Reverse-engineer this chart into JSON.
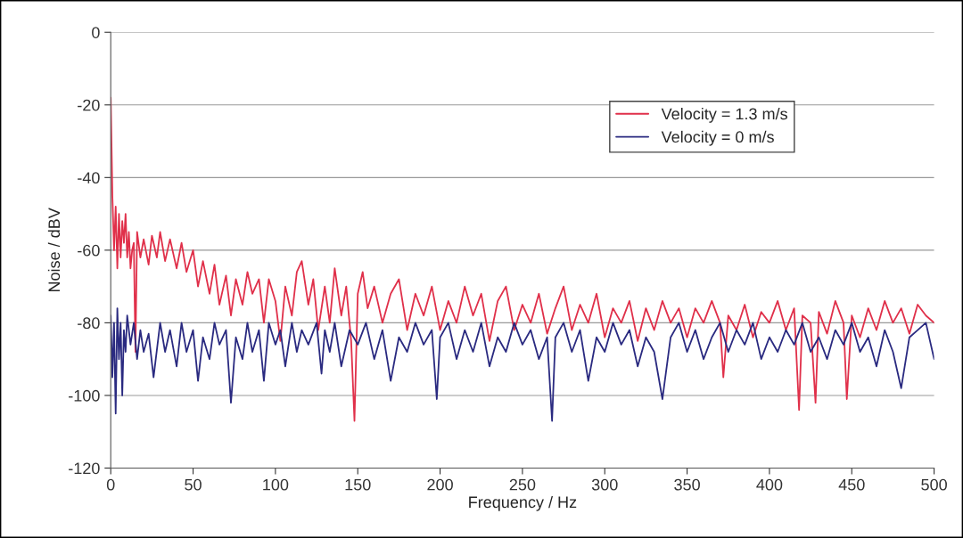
{
  "chart_data": {
    "type": "line",
    "xlabel": "Frequency / Hz",
    "ylabel": "Noise / dBV",
    "xlim": [
      0,
      500
    ],
    "xticks": [
      0,
      50,
      100,
      150,
      200,
      250,
      300,
      350,
      400,
      450,
      500
    ],
    "ylim": [
      -120,
      0
    ],
    "yticks": [
      -120,
      -100,
      -80,
      -60,
      -40,
      -20,
      0
    ],
    "grid": "y",
    "legend": "top right",
    "line_style": "solid",
    "marker": "none",
    "series": [
      {
        "name": "Velocity = 1.3 m/s",
        "color": "#e0304a",
        "x": [
          0,
          1,
          2,
          3,
          4,
          5,
          6,
          7,
          8,
          9,
          10,
          11,
          12,
          13,
          14,
          15,
          16,
          18,
          20,
          23,
          25,
          28,
          30,
          33,
          36,
          40,
          43,
          46,
          50,
          53,
          56,
          60,
          63,
          66,
          70,
          73,
          76,
          80,
          83,
          86,
          90,
          93,
          96,
          100,
          103,
          106,
          110,
          113,
          116,
          120,
          123,
          126,
          130,
          133,
          136,
          140,
          143,
          146,
          148,
          150,
          153,
          156,
          160,
          165,
          170,
          175,
          180,
          185,
          190,
          195,
          200,
          205,
          210,
          215,
          220,
          225,
          230,
          235,
          240,
          245,
          250,
          255,
          260,
          265,
          270,
          275,
          280,
          285,
          290,
          295,
          300,
          305,
          310,
          315,
          320,
          325,
          330,
          335,
          340,
          345,
          350,
          355,
          360,
          365,
          370,
          372,
          375,
          380,
          385,
          390,
          395,
          400,
          405,
          410,
          415,
          418,
          420,
          425,
          428,
          430,
          435,
          440,
          445,
          447,
          450,
          455,
          460,
          465,
          470,
          475,
          480,
          485,
          490,
          495,
          500
        ],
        "values": [
          -18,
          -45,
          -60,
          -48,
          -65,
          -50,
          -62,
          -52,
          -58,
          -50,
          -62,
          -55,
          -65,
          -60,
          -58,
          -88,
          -55,
          -62,
          -57,
          -64,
          -56,
          -62,
          -55,
          -63,
          -57,
          -65,
          -58,
          -66,
          -60,
          -70,
          -63,
          -72,
          -64,
          -75,
          -67,
          -78,
          -68,
          -75,
          -66,
          -72,
          -68,
          -80,
          -68,
          -74,
          -85,
          -70,
          -78,
          -66,
          -63,
          -75,
          -68,
          -82,
          -70,
          -80,
          -65,
          -78,
          -70,
          -85,
          -107,
          -72,
          -66,
          -76,
          -70,
          -80,
          -72,
          -68,
          -82,
          -72,
          -78,
          -70,
          -82,
          -74,
          -80,
          -70,
          -78,
          -72,
          -85,
          -74,
          -70,
          -82,
          -75,
          -80,
          -72,
          -83,
          -76,
          -70,
          -82,
          -75,
          -80,
          -72,
          -84,
          -76,
          -80,
          -74,
          -85,
          -76,
          -82,
          -74,
          -80,
          -76,
          -84,
          -76,
          -80,
          -74,
          -80,
          -95,
          -78,
          -82,
          -75,
          -84,
          -77,
          -80,
          -74,
          -82,
          -76,
          -104,
          -78,
          -80,
          -102,
          -77,
          -83,
          -74,
          -80,
          -101,
          -78,
          -84,
          -76,
          -82,
          -74,
          -80,
          -76,
          -83,
          -75,
          -78,
          -80
        ]
      },
      {
        "name": "Velocity = 0 m/s",
        "color": "#2a2a80",
        "x": [
          0,
          1,
          2,
          3,
          4,
          5,
          6,
          7,
          8,
          9,
          10,
          12,
          14,
          16,
          18,
          20,
          23,
          26,
          30,
          33,
          36,
          40,
          43,
          46,
          50,
          53,
          56,
          60,
          63,
          66,
          70,
          73,
          76,
          80,
          83,
          86,
          90,
          93,
          96,
          100,
          103,
          106,
          110,
          113,
          116,
          120,
          125,
          128,
          130,
          133,
          136,
          140,
          145,
          150,
          155,
          160,
          165,
          170,
          175,
          180,
          185,
          190,
          195,
          198,
          200,
          205,
          210,
          215,
          220,
          225,
          230,
          235,
          240,
          245,
          250,
          255,
          260,
          265,
          268,
          270,
          275,
          280,
          285,
          290,
          295,
          300,
          305,
          310,
          315,
          320,
          325,
          330,
          335,
          340,
          345,
          350,
          355,
          360,
          365,
          370,
          375,
          380,
          385,
          390,
          395,
          400,
          405,
          410,
          415,
          420,
          425,
          430,
          435,
          440,
          445,
          450,
          455,
          460,
          465,
          470,
          475,
          480,
          485,
          490,
          495,
          500
        ],
        "values": [
          -78,
          -95,
          -80,
          -105,
          -76,
          -90,
          -80,
          -100,
          -82,
          -88,
          -78,
          -86,
          -80,
          -90,
          -82,
          -88,
          -83,
          -95,
          -80,
          -88,
          -82,
          -92,
          -80,
          -88,
          -82,
          -96,
          -84,
          -90,
          -80,
          -86,
          -82,
          -102,
          -84,
          -90,
          -80,
          -88,
          -82,
          -96,
          -80,
          -86,
          -82,
          -92,
          -80,
          -88,
          -82,
          -86,
          -80,
          -94,
          -82,
          -88,
          -80,
          -92,
          -82,
          -86,
          -80,
          -90,
          -82,
          -96,
          -84,
          -88,
          -80,
          -86,
          -82,
          -101,
          -84,
          -80,
          -90,
          -82,
          -88,
          -80,
          -92,
          -84,
          -88,
          -80,
          -86,
          -82,
          -90,
          -84,
          -107,
          -84,
          -80,
          -88,
          -82,
          -96,
          -84,
          -88,
          -80,
          -86,
          -82,
          -92,
          -84,
          -88,
          -101,
          -84,
          -80,
          -88,
          -82,
          -90,
          -84,
          -80,
          -88,
          -82,
          -86,
          -80,
          -90,
          -84,
          -88,
          -82,
          -86,
          -80,
          -88,
          -84,
          -90,
          -82,
          -86,
          -80,
          -88,
          -84,
          -92,
          -82,
          -88,
          -98,
          -84,
          -82,
          -80,
          -90
        ]
      }
    ]
  }
}
